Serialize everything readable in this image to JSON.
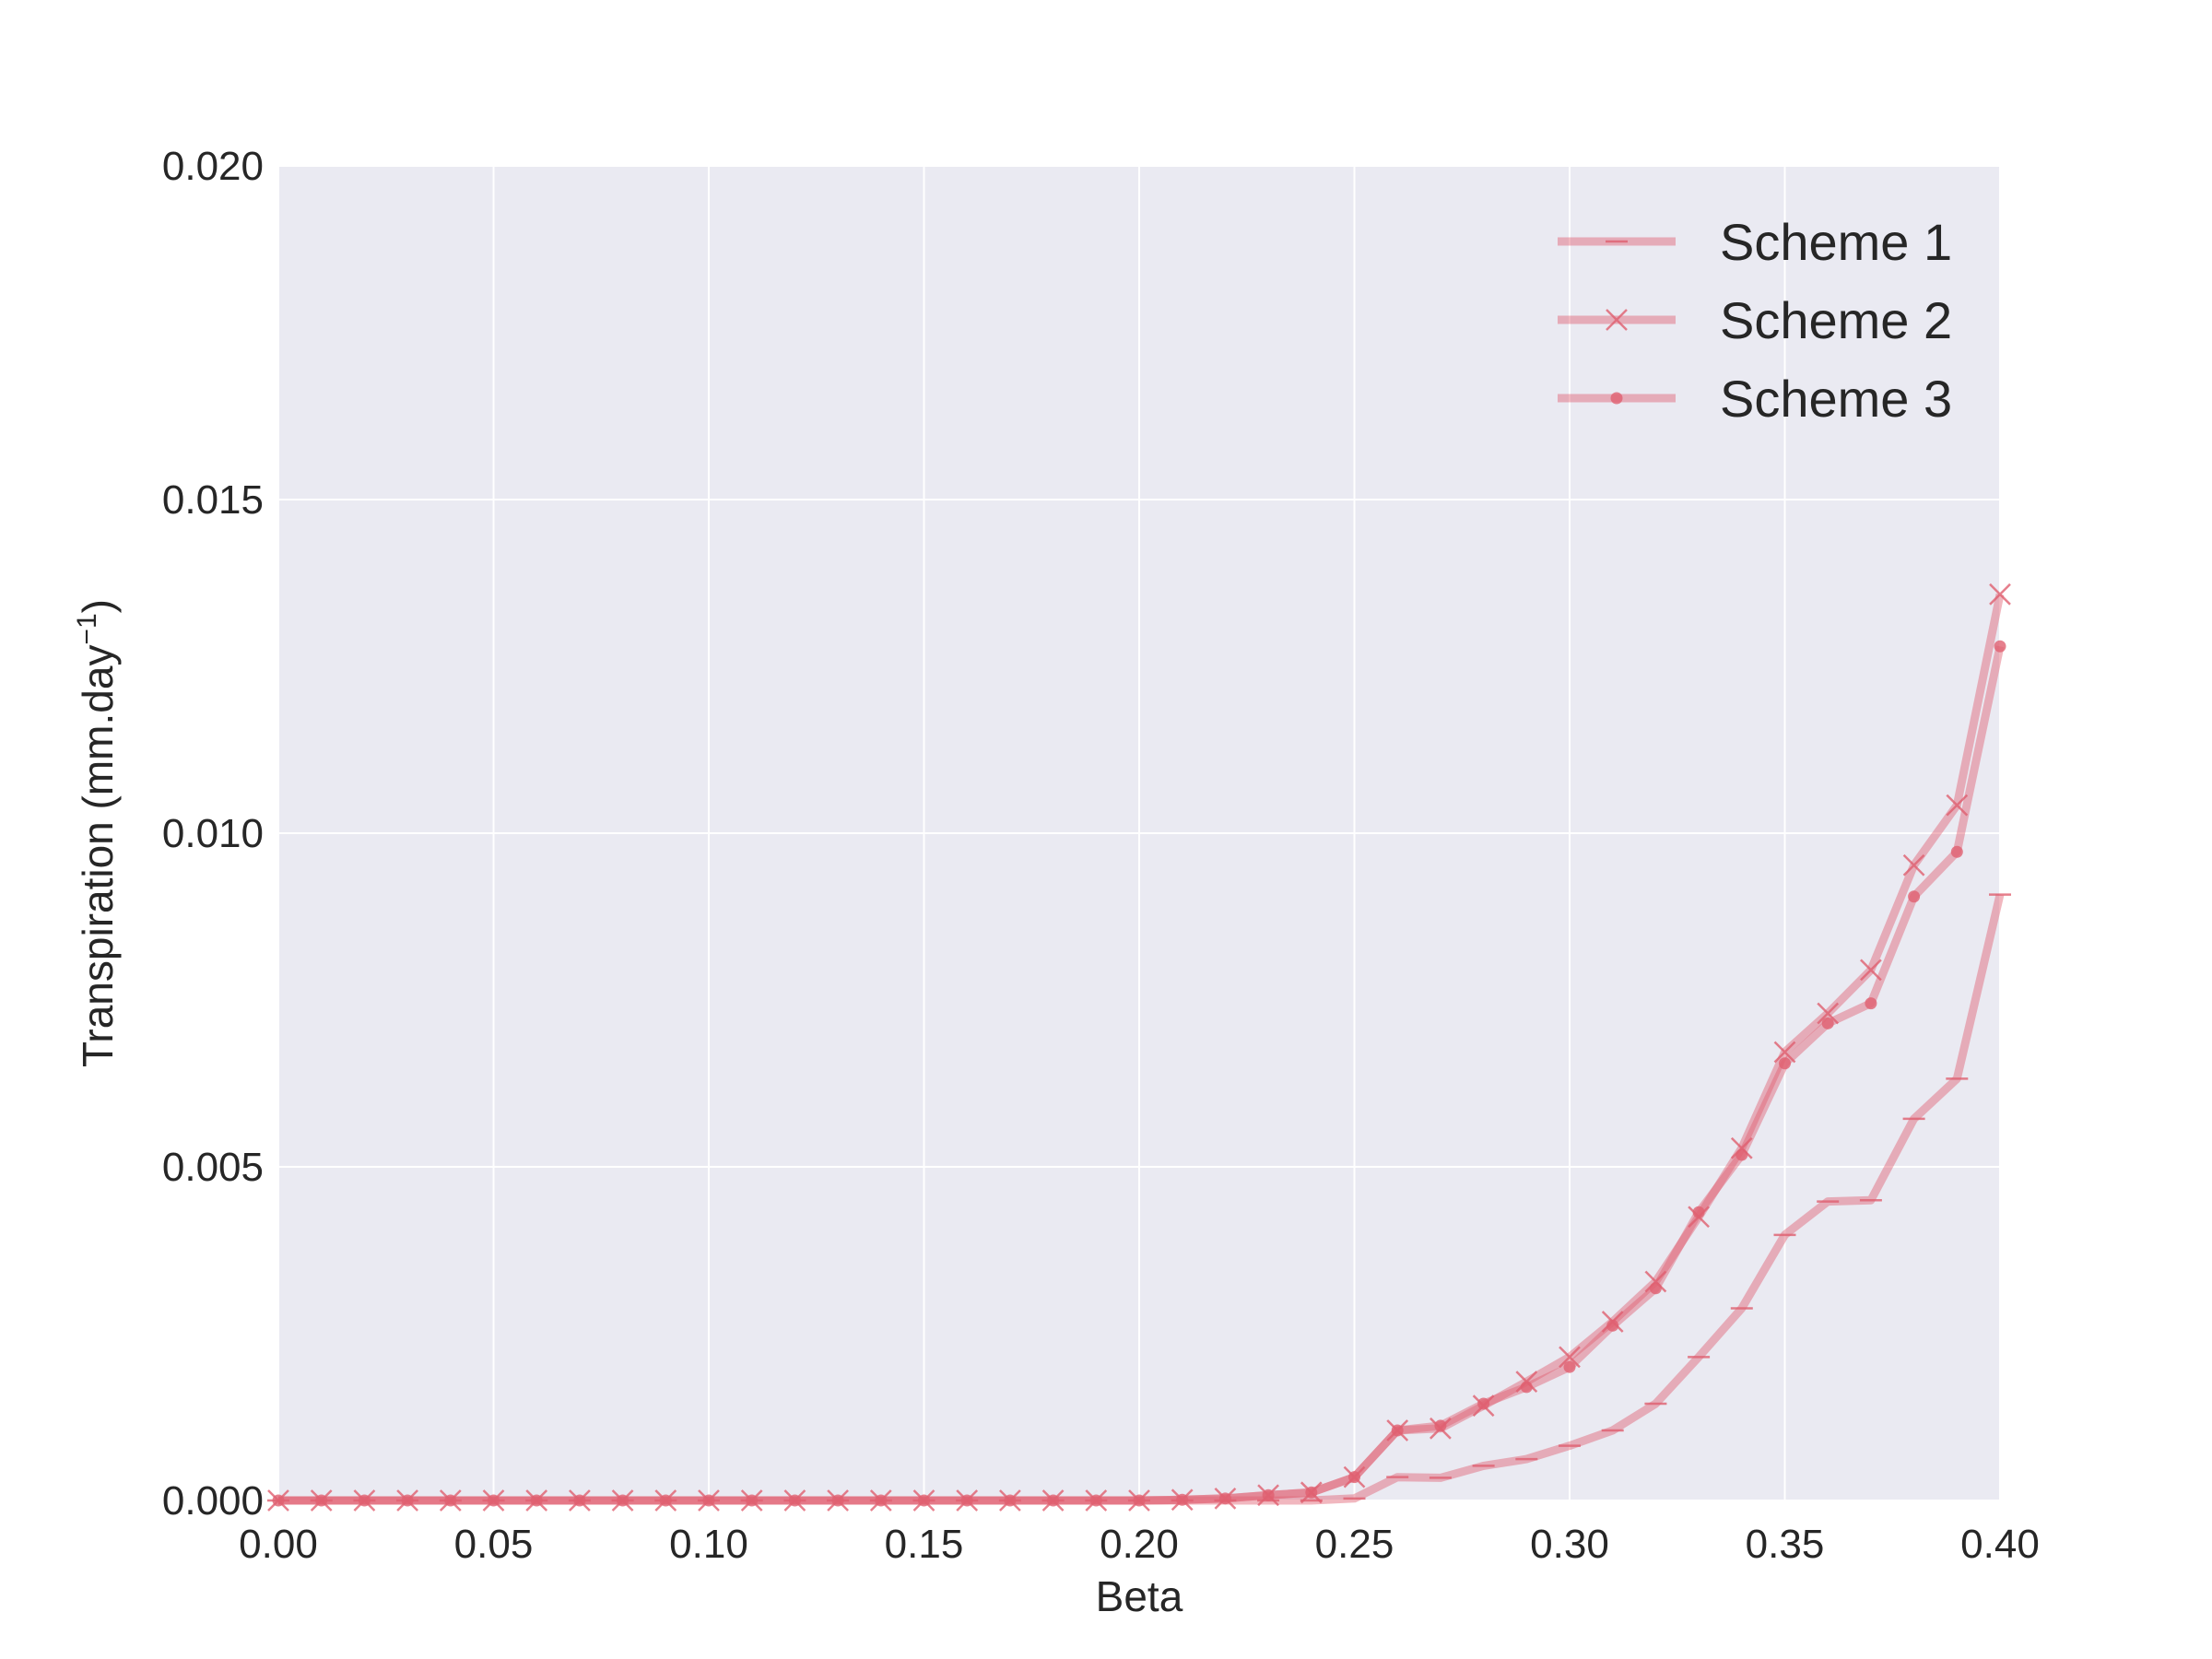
{
  "chart_data": {
    "type": "line",
    "xlabel": "Beta",
    "ylabel_main": "Transpiration (mm.day",
    "ylabel_sup": "−1",
    "ylabel_close": ")",
    "xlim": [
      0,
      0.4
    ],
    "ylim": [
      0,
      0.02
    ],
    "xticks": [
      0,
      0.05,
      0.1,
      0.15,
      0.2,
      0.25,
      0.3,
      0.35,
      0.4
    ],
    "xtick_labels": [
      "0.00",
      "0.05",
      "0.10",
      "0.15",
      "0.20",
      "0.25",
      "0.30",
      "0.35",
      "0.40"
    ],
    "yticks": [
      0,
      0.005,
      0.01,
      0.015,
      0.02
    ],
    "ytick_labels": [
      "0.000",
      "0.005",
      "0.010",
      "0.015",
      "0.020"
    ],
    "grid": true,
    "legend_position": "top-right",
    "colors": {
      "series": "#e06070",
      "plot_bg": "#eaeaf2",
      "grid": "#ffffff",
      "text": "#262626"
    },
    "x": [
      0.0,
      0.01,
      0.02,
      0.03,
      0.04,
      0.05,
      0.06,
      0.07,
      0.08,
      0.09,
      0.1,
      0.11,
      0.12,
      0.13,
      0.14,
      0.15,
      0.16,
      0.17,
      0.18,
      0.19,
      0.2,
      0.21,
      0.22,
      0.23,
      0.24,
      0.25,
      0.26,
      0.27,
      0.28,
      0.29,
      0.3,
      0.31,
      0.32,
      0.33,
      0.34,
      0.35,
      0.36,
      0.37,
      0.38,
      0.39,
      0.4
    ],
    "series": [
      {
        "name": "Scheme 1",
        "marker": "hline",
        "values": [
          0,
          0,
          0,
          0,
          0,
          0,
          0,
          0,
          0,
          0,
          0,
          0,
          0,
          0,
          0,
          0,
          0,
          0,
          0,
          0,
          0,
          0,
          0,
          0,
          0,
          3e-05,
          0.00035,
          0.00034,
          0.00052,
          0.00062,
          0.00082,
          0.00105,
          0.00145,
          0.00215,
          0.00288,
          0.00398,
          0.00448,
          0.0045,
          0.00572,
          0.00632,
          0.00908
        ]
      },
      {
        "name": "Scheme 2",
        "marker": "x",
        "values": [
          0,
          0,
          0,
          0,
          0,
          0,
          0,
          0,
          0,
          0,
          0,
          0,
          0,
          0,
          0,
          0,
          0,
          0,
          0,
          0,
          0,
          1e-05,
          3e-05,
          8e-05,
          0.00012,
          0.00035,
          0.00105,
          0.00108,
          0.00142,
          0.00178,
          0.00215,
          0.00268,
          0.00328,
          0.00425,
          0.00528,
          0.00672,
          0.0073,
          0.00795,
          0.00952,
          0.01042,
          0.01358
        ]
      },
      {
        "name": "Scheme 3",
        "marker": "dot",
        "values": [
          0,
          0,
          0,
          0,
          0,
          0,
          0,
          0,
          0,
          0,
          0,
          0,
          0,
          0,
          0,
          0,
          0,
          0,
          0,
          0,
          0,
          1e-05,
          3e-05,
          8e-05,
          0.00012,
          0.00035,
          0.00105,
          0.00112,
          0.00145,
          0.0017,
          0.002,
          0.00262,
          0.00318,
          0.00432,
          0.00518,
          0.00655,
          0.00715,
          0.00745,
          0.00905,
          0.00972,
          0.0128
        ]
      }
    ]
  }
}
